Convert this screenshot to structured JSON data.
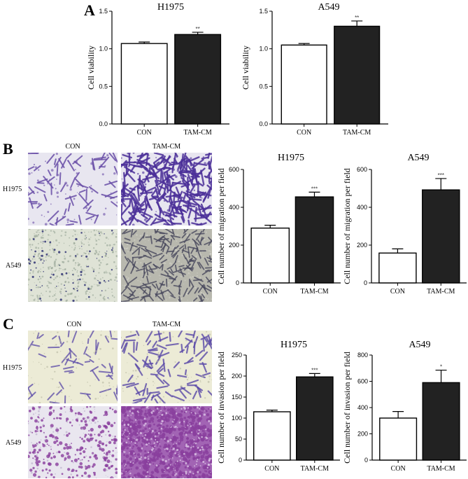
{
  "panel_labels": {
    "a": "A",
    "b": "B",
    "c": "C"
  },
  "micrograph_labels": {
    "b": {
      "col1": "CON",
      "col2": "TAM-CM",
      "row1": "H1975",
      "row2": "A549"
    },
    "c": {
      "col1": "CON",
      "col2": "TAM-CM",
      "row1": "H1975",
      "row2": "A549"
    }
  },
  "colors": {
    "con_fill": "#ffffff",
    "tamcm_fill": "#222222",
    "b_h1975_bg": "#e8e6f0",
    "b_h1975_cell_con": "#6a4fa8",
    "b_h1975_cell_tam": "#4b2f99",
    "b_a549_bg": "#dfe3d6",
    "b_a549_cell_con": "#3b3d7a",
    "b_a549_cell_tam": "#4a4a5e",
    "b_a549_tam_bg": "#b8b8ae",
    "c_h1975_bg": "#ecebd6",
    "c_h1975_cell": "#5a49a8",
    "c_a549_bg": "#e9e6ef",
    "c_a549_cell": "#8a3f9e",
    "c_a549_tam_bg": "#a264b4"
  },
  "chart_data": [
    {
      "type": "bar",
      "title": "H1975",
      "ylabel": "Cell viability",
      "categories": [
        "CON",
        "TAM-CM"
      ],
      "values": [
        1.07,
        1.19
      ],
      "errors": [
        0.02,
        0.03
      ],
      "significance": [
        "",
        "**"
      ],
      "ylim": [
        0,
        1.5
      ],
      "yticks": [
        0.0,
        0.5,
        1.0,
        1.5
      ],
      "ytick_labels": [
        "0.0",
        "0.5",
        "1.0",
        "1.5"
      ]
    },
    {
      "type": "bar",
      "title": "A549",
      "ylabel": "Cell viability",
      "categories": [
        "CON",
        "TAM-CM"
      ],
      "values": [
        1.05,
        1.3
      ],
      "errors": [
        0.02,
        0.07
      ],
      "significance": [
        "",
        "**"
      ],
      "ylim": [
        0,
        1.5
      ],
      "yticks": [
        0.0,
        0.5,
        1.0,
        1.5
      ],
      "ytick_labels": [
        "0.0",
        "0.5",
        "1.0",
        "1.5"
      ]
    },
    {
      "type": "bar",
      "title": "H1975",
      "ylabel": "Cell number of migration per field",
      "categories": [
        "CON",
        "TAM-CM"
      ],
      "values": [
        290,
        455
      ],
      "errors": [
        15,
        25
      ],
      "significance": [
        "",
        "***"
      ],
      "ylim": [
        0,
        600
      ],
      "yticks": [
        0,
        200,
        400,
        600
      ],
      "ytick_labels": [
        "0",
        "200",
        "400",
        "600"
      ]
    },
    {
      "type": "bar",
      "title": "A549",
      "ylabel": "Cell number of migration per field",
      "categories": [
        "CON",
        "TAM-CM"
      ],
      "values": [
        158,
        492
      ],
      "errors": [
        22,
        60
      ],
      "significance": [
        "",
        "***"
      ],
      "ylim": [
        0,
        600
      ],
      "yticks": [
        0,
        200,
        400,
        600
      ],
      "ytick_labels": [
        "0",
        "200",
        "400",
        "600"
      ]
    },
    {
      "type": "bar",
      "title": "H1975",
      "ylabel": "Cell number of invasion per field",
      "categories": [
        "CON",
        "TAM-CM"
      ],
      "values": [
        115,
        198
      ],
      "errors": [
        4,
        8
      ],
      "significance": [
        "",
        "***"
      ],
      "ylim": [
        0,
        250
      ],
      "yticks": [
        0,
        50,
        100,
        150,
        200,
        250
      ],
      "ytick_labels": [
        "0",
        "50",
        "100",
        "150",
        "200",
        "250"
      ]
    },
    {
      "type": "bar",
      "title": "A549",
      "ylabel": "Cell number of invasion per field",
      "categories": [
        "CON",
        "TAM-CM"
      ],
      "values": [
        320,
        590
      ],
      "errors": [
        50,
        95
      ],
      "significance": [
        "",
        "*"
      ],
      "ylim": [
        0,
        800
      ],
      "yticks": [
        0,
        200,
        400,
        600,
        800
      ],
      "ytick_labels": [
        "0",
        "200",
        "400",
        "600",
        "800"
      ]
    }
  ]
}
